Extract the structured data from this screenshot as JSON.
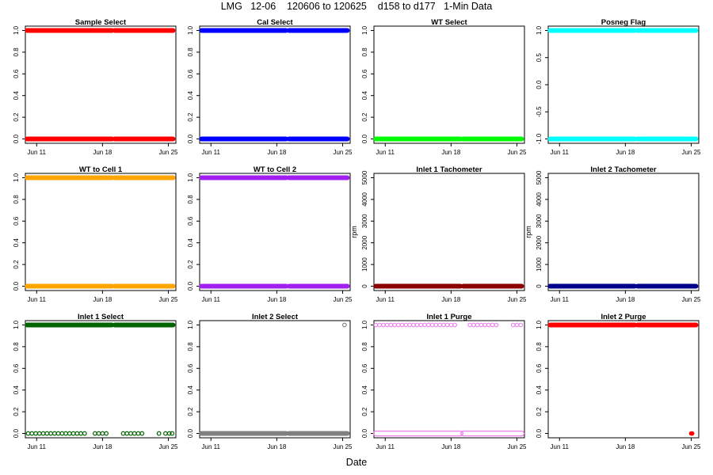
{
  "header": {
    "title": "LMG   12-06    120606 to 120625    d158 to d177   1-Min Data"
  },
  "chart_data": [
    {
      "type": "scatter",
      "title": "Sample Select",
      "ylabel": "",
      "ylim": [
        0,
        1
      ],
      "yticks": [
        0.0,
        0.2,
        0.4,
        0.6,
        0.8,
        1.0
      ],
      "ytick_labels": [
        "0.0",
        "0.2",
        "0.4",
        "0.6",
        "0.8",
        "1.0"
      ],
      "xticks": [
        "Jun 11",
        "Jun 18",
        "Jun 25"
      ],
      "color": "#ff0000",
      "marker": "filled",
      "series": [
        {
          "y": 1,
          "ranges": [
            [
              "Jun 10",
              "Jun 19"
            ],
            [
              "Jun 19.3",
              "Jun 19.5"
            ],
            [
              "Jun 19.6",
              "Jun 25.5"
            ]
          ]
        },
        {
          "y": 0,
          "ranges": [
            [
              "Jun 10",
              "Jun 19"
            ],
            [
              "Jun 19.3",
              "Jun 25.5"
            ]
          ]
        }
      ]
    },
    {
      "type": "scatter",
      "title": "Cal Select",
      "ylabel": "",
      "ylim": [
        0,
        1
      ],
      "yticks": [
        0.0,
        0.2,
        0.4,
        0.6,
        0.8,
        1.0
      ],
      "ytick_labels": [
        "0.0",
        "0.2",
        "0.4",
        "0.6",
        "0.8",
        "1.0"
      ],
      "xticks": [
        "Jun 11",
        "Jun 18",
        "Jun 25"
      ],
      "color": "#0000ff",
      "marker": "filled",
      "series": [
        {
          "y": 1,
          "ranges": [
            [
              "Jun 10",
              "Jun 19"
            ],
            [
              "Jun 19.3",
              "Jun 25.5"
            ]
          ]
        },
        {
          "y": 0,
          "ranges": [
            [
              "Jun 10",
              "Jun 19"
            ],
            [
              "Jun 19.3",
              "Jun 25.5"
            ]
          ]
        }
      ]
    },
    {
      "type": "scatter",
      "title": "WT Select",
      "ylabel": "",
      "ylim": [
        0,
        1
      ],
      "yticks": [
        0.0,
        0.2,
        0.4,
        0.6,
        0.8,
        1.0
      ],
      "ytick_labels": [
        "0.0",
        "0.2",
        "0.4",
        "0.6",
        "0.8",
        "1.0"
      ],
      "xticks": [
        "Jun 11",
        "Jun 18",
        "Jun 25"
      ],
      "color": "#00ff00",
      "marker": "filled",
      "series": [
        {
          "y": 0,
          "ranges": [
            [
              "Jun 10",
              "Jun 19"
            ],
            [
              "Jun 19.3",
              "Jun 25.5"
            ]
          ]
        }
      ]
    },
    {
      "type": "scatter",
      "title": "Posneg Flag",
      "ylabel": "",
      "ylim": [
        -1,
        1
      ],
      "yticks": [
        -1.0,
        -0.5,
        0.0,
        0.5,
        1.0
      ],
      "ytick_labels": [
        "-1.0",
        "-0.5",
        "0.0",
        "0.5",
        "1.0"
      ],
      "xticks": [
        "Jun 11",
        "Jun 18",
        "Jun 25"
      ],
      "color": "#00ffff",
      "marker": "filled",
      "series": [
        {
          "y": 1,
          "ranges": [
            [
              "Jun 10",
              "Jun 19"
            ],
            [
              "Jun 19.3",
              "Jun 25.5"
            ]
          ]
        },
        {
          "y": -1,
          "ranges": [
            [
              "Jun 10",
              "Jun 19"
            ],
            [
              "Jun 19.3",
              "Jun 25.5"
            ]
          ]
        }
      ]
    },
    {
      "type": "scatter",
      "title": "WT to Cell 1",
      "ylabel": "",
      "ylim": [
        0,
        1
      ],
      "yticks": [
        0.0,
        0.2,
        0.4,
        0.6,
        0.8,
        1.0
      ],
      "ytick_labels": [
        "0.0",
        "0.2",
        "0.4",
        "0.6",
        "0.8",
        "1.0"
      ],
      "xticks": [
        "Jun 11",
        "Jun 18",
        "Jun 25"
      ],
      "color": "#ffa500",
      "marker": "filled",
      "series": [
        {
          "y": 1,
          "ranges": [
            [
              "Jun 10",
              "Jun 19"
            ],
            [
              "Jun 19.3",
              "Jun 25.5"
            ]
          ]
        },
        {
          "y": 0,
          "ranges": [
            [
              "Jun 10",
              "Jun 19"
            ],
            [
              "Jun 19.3",
              "Jun 25.5"
            ]
          ]
        }
      ]
    },
    {
      "type": "scatter",
      "title": "WT to Cell 2",
      "ylabel": "",
      "ylim": [
        0,
        1
      ],
      "yticks": [
        0.0,
        0.2,
        0.4,
        0.6,
        0.8,
        1.0
      ],
      "ytick_labels": [
        "0.0",
        "0.2",
        "0.4",
        "0.6",
        "0.8",
        "1.0"
      ],
      "xticks": [
        "Jun 11",
        "Jun 18",
        "Jun 25"
      ],
      "color": "#a020f0",
      "marker": "filled",
      "series": [
        {
          "y": 1,
          "ranges": [
            [
              "Jun 10",
              "Jun 19"
            ],
            [
              "Jun 19.3",
              "Jun 25.5"
            ]
          ]
        },
        {
          "y": 0,
          "ranges": [
            [
              "Jun 10",
              "Jun 19"
            ],
            [
              "Jun 19.3",
              "Jun 25.5"
            ]
          ]
        }
      ]
    },
    {
      "type": "scatter",
      "title": "Inlet 1 Tachometer",
      "ylabel": "rpm",
      "ylim": [
        0,
        5000
      ],
      "yticks": [
        0,
        1000,
        2000,
        3000,
        4000,
        5000
      ],
      "ytick_labels": [
        "0",
        "1000",
        "2000",
        "3000",
        "4000",
        "5000"
      ],
      "xticks": [
        "Jun 11",
        "Jun 18",
        "Jun 25"
      ],
      "color": "#8b0000",
      "marker": "filled",
      "series": [
        {
          "y": 0,
          "ranges": [
            [
              "Jun 10",
              "Jun 19"
            ],
            [
              "Jun 19.3",
              "Jun 25.5"
            ]
          ]
        }
      ]
    },
    {
      "type": "scatter",
      "title": "Inlet 2 Tachometer",
      "ylabel": "rpm",
      "ylim": [
        0,
        5000
      ],
      "yticks": [
        0,
        1000,
        2000,
        3000,
        4000,
        5000
      ],
      "ytick_labels": [
        "0",
        "1000",
        "2000",
        "3000",
        "4000",
        "5000"
      ],
      "xticks": [
        "Jun 11",
        "Jun 18",
        "Jun 25"
      ],
      "color": "#00008b",
      "marker": "filled",
      "series": [
        {
          "y": 0,
          "ranges": [
            [
              "Jun 10",
              "Jun 19"
            ],
            [
              "Jun 19.3",
              "Jun 25.5"
            ]
          ]
        }
      ]
    },
    {
      "type": "scatter",
      "title": "Inlet 1 Select",
      "ylabel": "",
      "ylim": [
        0,
        1
      ],
      "yticks": [
        0.0,
        0.2,
        0.4,
        0.6,
        0.8,
        1.0
      ],
      "ytick_labels": [
        "0.0",
        "0.2",
        "0.4",
        "0.6",
        "0.8",
        "1.0"
      ],
      "xticks": [
        "Jun 11",
        "Jun 18",
        "Jun 25"
      ],
      "color": "#006400",
      "marker": "filled",
      "series": [
        {
          "y": 1,
          "ranges": [
            [
              "Jun 10",
              "Jun 19"
            ],
            [
              "Jun 19.3",
              "Jun 25.5"
            ]
          ]
        },
        {
          "y": 0,
          "marker": "open",
          "points": [
            "Jun 10.1",
            "Jun 10.5",
            "Jun 10.9",
            "Jun 11.3",
            "Jun 11.7",
            "Jun 12.1",
            "Jun 12.5",
            "Jun 12.9",
            "Jun 13.3",
            "Jun 13.7",
            "Jun 14.1",
            "Jun 14.5",
            "Jun 14.9",
            "Jun 15.3",
            "Jun 15.7",
            "Jun 16.1",
            "Jun 17.2",
            "Jun 17.6",
            "Jun 18.0",
            "Jun 18.4",
            "Jun 20.2",
            "Jun 20.6",
            "Jun 21.0",
            "Jun 21.4",
            "Jun 21.8",
            "Jun 22.2",
            "Jun 24.0",
            "Jun 24.7",
            "Jun 25.1",
            "Jun 25.4"
          ]
        }
      ]
    },
    {
      "type": "scatter",
      "title": "Inlet 2 Select",
      "ylabel": "",
      "ylim": [
        0,
        1
      ],
      "yticks": [
        0.0,
        0.2,
        0.4,
        0.6,
        0.8,
        1.0
      ],
      "ytick_labels": [
        "0.0",
        "0.2",
        "0.4",
        "0.6",
        "0.8",
        "1.0"
      ],
      "xticks": [
        "Jun 11",
        "Jun 18",
        "Jun 25"
      ],
      "color": "#808080",
      "marker": "filled",
      "series": [
        {
          "y": 0,
          "ranges": [
            [
              "Jun 10",
              "Jun 19"
            ],
            [
              "Jun 19.3",
              "Jun 25.5"
            ]
          ]
        },
        {
          "y": 1,
          "marker": "open",
          "points": [
            "Jun 25.2"
          ]
        }
      ]
    },
    {
      "type": "scatter",
      "title": "Inlet 1 Purge",
      "ylabel": "",
      "ylim": [
        0,
        1
      ],
      "yticks": [
        0.0,
        0.2,
        0.4,
        0.6,
        0.8,
        1.0
      ],
      "ytick_labels": [
        "0.0",
        "0.2",
        "0.4",
        "0.6",
        "0.8",
        "1.0"
      ],
      "xticks": [
        "Jun 11",
        "Jun 18",
        "Jun 25"
      ],
      "color": "#ee82ee",
      "marker": "open",
      "series": [
        {
          "y": 0,
          "ranges": [
            [
              "Jun 10",
              "Jun 19"
            ],
            [
              "Jun 19.3",
              "Jun 25.5"
            ]
          ]
        },
        {
          "y": 1,
          "points": [
            "Jun 10.0",
            "Jun 10.4",
            "Jun 10.8",
            "Jun 11.2",
            "Jun 11.6",
            "Jun 12.0",
            "Jun 12.4",
            "Jun 12.8",
            "Jun 13.2",
            "Jun 13.6",
            "Jun 14.0",
            "Jun 14.4",
            "Jun 14.8",
            "Jun 15.2",
            "Jun 15.6",
            "Jun 16.0",
            "Jun 16.4",
            "Jun 16.8",
            "Jun 17.2",
            "Jun 17.6",
            "Jun 18.0",
            "Jun 18.4",
            "Jun 20.0",
            "Jun 20.4",
            "Jun 20.8",
            "Jun 21.2",
            "Jun 21.6",
            "Jun 22.0",
            "Jun 22.4",
            "Jun 22.8",
            "Jun 24.6",
            "Jun 25.0",
            "Jun 25.4"
          ]
        }
      ]
    },
    {
      "type": "scatter",
      "title": "Inlet 2 Purge",
      "ylabel": "",
      "ylim": [
        0,
        1
      ],
      "yticks": [
        0.0,
        0.2,
        0.4,
        0.6,
        0.8,
        1.0
      ],
      "ytick_labels": [
        "0.0",
        "0.2",
        "0.4",
        "0.6",
        "0.8",
        "1.0"
      ],
      "xticks": [
        "Jun 11",
        "Jun 18",
        "Jun 25"
      ],
      "color": "#ff0000",
      "marker": "filled",
      "series": [
        {
          "y": 1,
          "ranges": [
            [
              "Jun 10",
              "Jun 19"
            ],
            [
              "Jun 19.3",
              "Jun 25.5"
            ]
          ]
        },
        {
          "y": 0,
          "points": [
            "Jun 25.0",
            "Jun 25.1"
          ]
        }
      ]
    }
  ],
  "footer": {
    "xlabel": "Date"
  }
}
